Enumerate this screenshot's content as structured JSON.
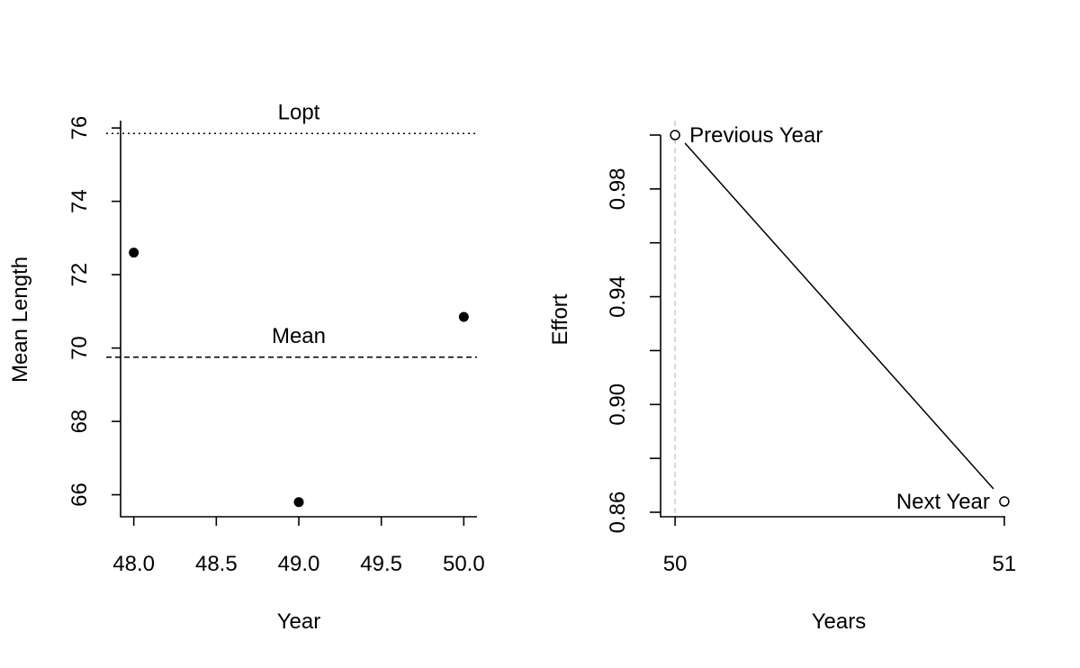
{
  "chart_data": [
    {
      "type": "scatter",
      "xlabel": "Year",
      "ylabel": "Mean Length",
      "xlim": [
        47.92,
        50.08
      ],
      "ylim": [
        65.4,
        76.2
      ],
      "xticks": [
        "48.0",
        "48.5",
        "49.0",
        "49.5",
        "50.0"
      ],
      "yticks": [
        "66",
        "68",
        "70",
        "72",
        "74",
        "76"
      ],
      "points": [
        {
          "x": 48,
          "y": 72.6
        },
        {
          "x": 49,
          "y": 65.8
        },
        {
          "x": 50,
          "y": 70.85
        }
      ],
      "reference_lines": [
        {
          "label": "Lopt",
          "y": 75.85,
          "style": "dotted"
        },
        {
          "label": "Mean",
          "y": 69.75,
          "style": "dashed"
        }
      ]
    },
    {
      "type": "line",
      "xlabel": "Years",
      "ylabel": "Effort",
      "xlim": [
        49.997,
        51.003
      ],
      "ylim": [
        0.86,
        1.0
      ],
      "xticks": [
        "50",
        "51"
      ],
      "yticks": [
        "0.86",
        "0.90",
        "0.94",
        "0.98"
      ],
      "points": [
        {
          "x": 50,
          "y": 1.0,
          "label": "Previous Year"
        },
        {
          "x": 51,
          "y": 0.864,
          "label": "Next Year"
        }
      ],
      "vline": {
        "x": 50,
        "style": "dashed",
        "color": "#cccccc"
      }
    }
  ]
}
